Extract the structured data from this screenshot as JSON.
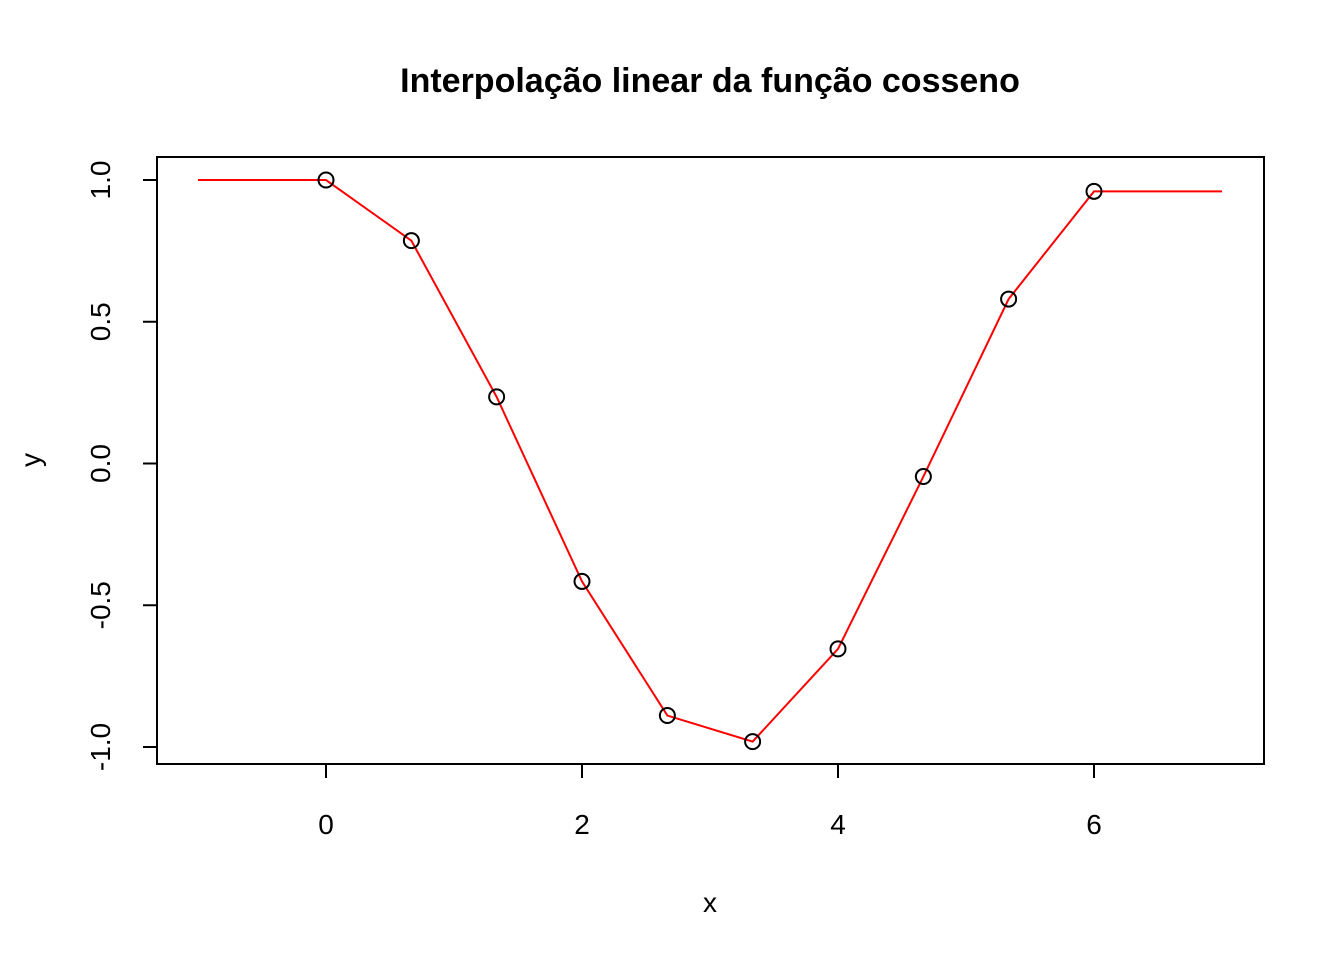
{
  "chart_data": {
    "type": "line",
    "title": "Interpolação linear da função cosseno",
    "xlabel": "x",
    "ylabel": "y",
    "xlim": [
      -1,
      7
    ],
    "ylim": [
      -1.0,
      1.0
    ],
    "x_ticks": [
      0,
      2,
      4,
      6
    ],
    "x_tick_labels": [
      "0",
      "2",
      "4",
      "6"
    ],
    "y_ticks": [
      -1.0,
      -0.5,
      0.0,
      0.5,
      1.0
    ],
    "y_tick_labels": [
      "-1.0",
      "-0.5",
      "0.0",
      "0.5",
      "1.0"
    ],
    "grid": false,
    "points": {
      "marker": "open-circle",
      "color": "#000000",
      "x": [
        0,
        0.667,
        1.333,
        2.0,
        2.667,
        3.333,
        4.0,
        4.667,
        5.333,
        6.0
      ],
      "y": [
        1.0,
        0.786,
        0.235,
        -0.416,
        -0.889,
        -0.981,
        -0.654,
        -0.046,
        0.58,
        0.96
      ]
    },
    "line": {
      "color": "#ff0000",
      "x": [
        -1,
        0,
        0.667,
        1.333,
        2.0,
        2.667,
        3.333,
        4.0,
        4.667,
        5.333,
        6.0,
        7
      ],
      "y": [
        1.0,
        1.0,
        0.786,
        0.235,
        -0.416,
        -0.889,
        -0.981,
        -0.654,
        -0.046,
        0.58,
        0.96,
        0.96
      ]
    }
  }
}
